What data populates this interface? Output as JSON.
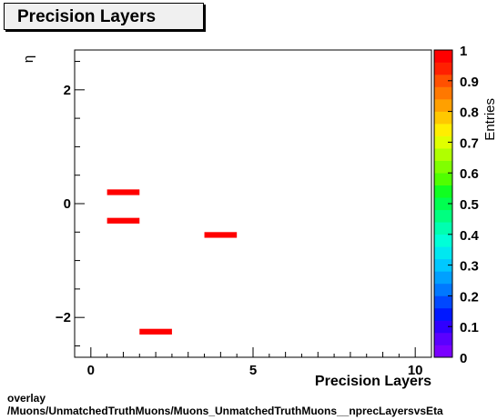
{
  "title": "Precision Layers",
  "footer": {
    "line1": "overlay",
    "line2": "/Muons/UnmatchedTruthMuons/Muons_UnmatchedTruthMuons__nprecLayersvsEta"
  },
  "chart_data": {
    "type": "heatmap",
    "title": "Precision Layers",
    "xlabel": "Precision Layers",
    "ylabel": "η",
    "zlabel": "Entries",
    "xlim": [
      -0.5,
      10.5
    ],
    "ylim": [
      -2.7,
      2.7
    ],
    "xticks": [
      0,
      5,
      10
    ],
    "yticks": [
      -2,
      0,
      2
    ],
    "ytick_labels": [
      "−2",
      "0",
      "2"
    ],
    "zlim": [
      0,
      1
    ],
    "zticks": [
      "0",
      "0.1",
      "0.2",
      "0.3",
      "0.4",
      "0.5",
      "0.6",
      "0.7",
      "0.8",
      "0.9",
      "1"
    ],
    "bin_width_y": 0.1,
    "cells": [
      {
        "x": 1,
        "y": 0.2,
        "value": 1
      },
      {
        "x": 1,
        "y": -0.3,
        "value": 1
      },
      {
        "x": 2,
        "y": -2.25,
        "value": 1
      },
      {
        "x": 4,
        "y": -0.55,
        "value": 1
      }
    ],
    "colorbar_colors": [
      "#7a00ff",
      "#5a00ff",
      "#3000ff",
      "#0018ff",
      "#0048ff",
      "#0078ff",
      "#00a0ff",
      "#00c8ff",
      "#00e8f0",
      "#00ffd8",
      "#00ffb0",
      "#00ff80",
      "#00ff50",
      "#10ff20",
      "#50ff00",
      "#80ff00",
      "#b0ff00",
      "#e0ff00",
      "#ffee00",
      "#ffc800",
      "#ffa000",
      "#ff7800",
      "#ff5000",
      "#ff2000",
      "#ff0000"
    ]
  }
}
